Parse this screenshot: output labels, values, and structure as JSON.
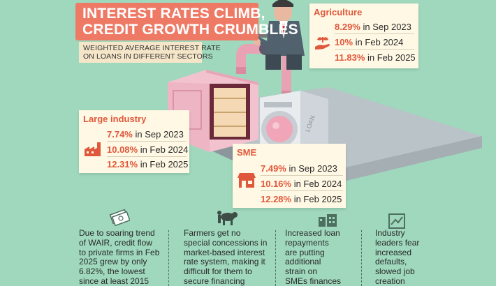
{
  "header": {
    "title_line1": "INTEREST RATES CLIMB,",
    "title_line2": "CREDIT GROWTH CRUMBLES",
    "subtitle_line1": "WEIGHTED AVERAGE INTEREST RATE",
    "subtitle_line2": "ON LOANS IN DIFFERENT SECTORS"
  },
  "sectors": [
    {
      "name": "Agriculture",
      "icon": "plant-hand-icon",
      "rows": [
        {
          "pct": "8.29%",
          "period": " in Sep 2023",
          "value": 8.29
        },
        {
          "pct": "10%",
          "period": " in Feb 2024",
          "value": 10
        },
        {
          "pct": "11.83%",
          "period": " in Feb 2025",
          "value": 11.83
        }
      ]
    },
    {
      "name": "Large industry",
      "icon": "factory-icon",
      "rows": [
        {
          "pct": "7.74%",
          "period": " in Sep 2023",
          "value": 7.74
        },
        {
          "pct": "10.08%",
          "period": " in Feb 2024",
          "value": 10.08
        },
        {
          "pct": "12.31%",
          "period": " in Feb 2025",
          "value": 12.31
        }
      ]
    },
    {
      "name": "SME",
      "icon": "shop-icon",
      "rows": [
        {
          "pct": "7.49%",
          "period": " in Sep 2023",
          "value": 7.49
        },
        {
          "pct": "10.16%",
          "period": " in Feb 2024",
          "value": 10.16
        },
        {
          "pct": "12.28%",
          "period": " in Feb 2025",
          "value": 12.28
        }
      ]
    }
  ],
  "illustration": {
    "washer_label": "LOAN"
  },
  "notes": [
    {
      "icon": "money-icon",
      "lines": [
        "Due to soaring trend",
        "of WAIR, credit flow",
        "to private firms in Feb",
        "2025 grew by only",
        "6.82%, the lowest",
        "since at least 2015"
      ]
    },
    {
      "icon": "farmer-icon",
      "lines": [
        "Farmers get no",
        "special concessions in",
        "market-based interest",
        "rate system, making it",
        "difficult for them to",
        "secure financing"
      ]
    },
    {
      "icon": "shops-icon",
      "lines": [
        "Increased loan",
        "repayments",
        "are putting",
        "additional",
        "strain on",
        "SMEs finances"
      ]
    },
    {
      "icon": "broken-chart-icon",
      "lines": [
        "Industry",
        "leaders fear",
        "increased",
        "defaults,",
        "slowed job",
        "creation"
      ]
    }
  ],
  "colors": {
    "background": "#9fd8bd",
    "accent": "#e0583b",
    "banner": "#ee7a66",
    "card": "#fff8e4"
  }
}
